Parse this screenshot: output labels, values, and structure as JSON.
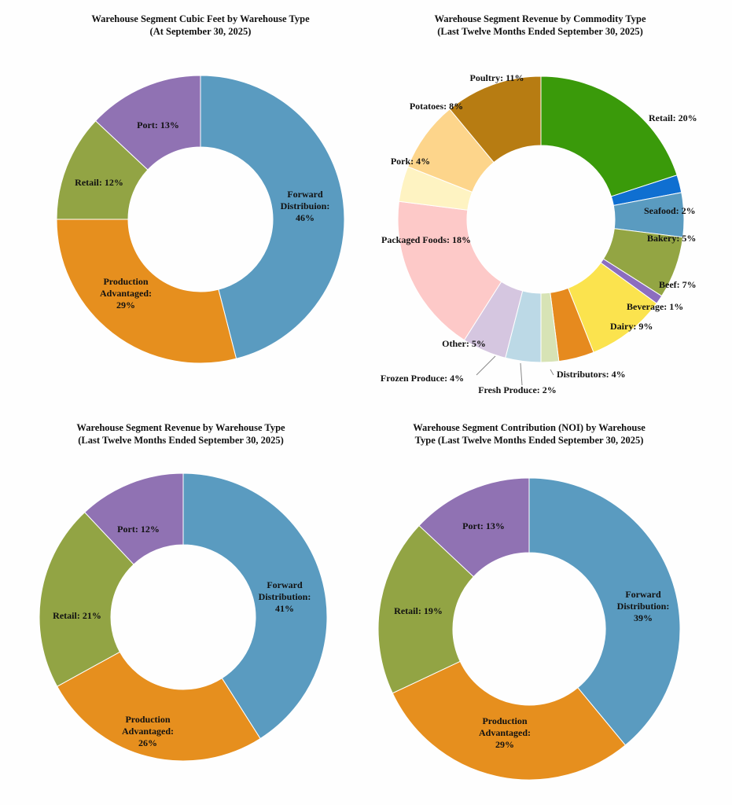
{
  "chart_data": [
    {
      "type": "donut",
      "title": [
        "Warehouse Segment Cubic Feet by Warehouse Type",
        "(At September 30, 2025)"
      ],
      "slices": [
        {
          "label": "Forward Distribuion",
          "value": 46,
          "color": "#5a9bc0"
        },
        {
          "label": "Production Advantaged",
          "value": 29,
          "color": "#e68f1e"
        },
        {
          "label": "Retail",
          "value": 12,
          "color": "#92a444"
        },
        {
          "label": "Port",
          "value": 13,
          "color": "#9072b3"
        }
      ]
    },
    {
      "type": "donut",
      "title": [
        "Warehouse Segment Revenue by Commodity Type",
        "(Last Twelve Months Ended September 30, 2025)"
      ],
      "slices": [
        {
          "label": "Retail",
          "value": 20,
          "color": "#3a9a0a"
        },
        {
          "label": "Seafood",
          "value": 2,
          "color": "#0f6fd1"
        },
        {
          "label": "Bakery",
          "value": 5,
          "color": "#5a9bc0"
        },
        {
          "label": "Beef",
          "value": 7,
          "color": "#93a543"
        },
        {
          "label": "Beverage",
          "value": 1,
          "color": "#8c6dbf"
        },
        {
          "label": "Dairy",
          "value": 9,
          "color": "#fbe34e"
        },
        {
          "label": "Distributors",
          "value": 4,
          "color": "#e68a1e"
        },
        {
          "label": "Fresh Produce",
          "value": 2,
          "color": "#d7e3b5"
        },
        {
          "label": "Frozen Produce",
          "value": 4,
          "color": "#bcd9e6"
        },
        {
          "label": "Other",
          "value": 5,
          "color": "#d5c6e0"
        },
        {
          "label": "Packaged Foods",
          "value": 18,
          "color": "#fdc9c8"
        },
        {
          "label": "Pork",
          "value": 4,
          "color": "#fef3c2"
        },
        {
          "label": "Potatoes",
          "value": 8,
          "color": "#fdd58b"
        },
        {
          "label": "Poultry",
          "value": 11,
          "color": "#b77c12"
        }
      ]
    },
    {
      "type": "donut",
      "title": [
        "Warehouse Segment Revenue by Warehouse Type",
        "(Last Twelve Months Ended September 30, 2025)"
      ],
      "slices": [
        {
          "label": "Forward Distribution",
          "value": 41,
          "color": "#5a9bc0"
        },
        {
          "label": "Production Advantaged",
          "value": 26,
          "color": "#e68f1e"
        },
        {
          "label": "Retail",
          "value": 21,
          "color": "#92a444"
        },
        {
          "label": "Port",
          "value": 12,
          "color": "#9072b3"
        }
      ]
    },
    {
      "type": "donut",
      "title": [
        "Warehouse Segment Contribution (NOI) by Warehouse",
        "Type (Last Twelve Months Ended September 30, 2025)"
      ],
      "slices": [
        {
          "label": "Forward Distribution",
          "value": 39,
          "color": "#5a9bc0"
        },
        {
          "label": "Production Advantaged",
          "value": 29,
          "color": "#e68f1e"
        },
        {
          "label": "Retail",
          "value": 19,
          "color": "#92a444"
        },
        {
          "label": "Port",
          "value": 13,
          "color": "#9072b3"
        }
      ]
    }
  ]
}
